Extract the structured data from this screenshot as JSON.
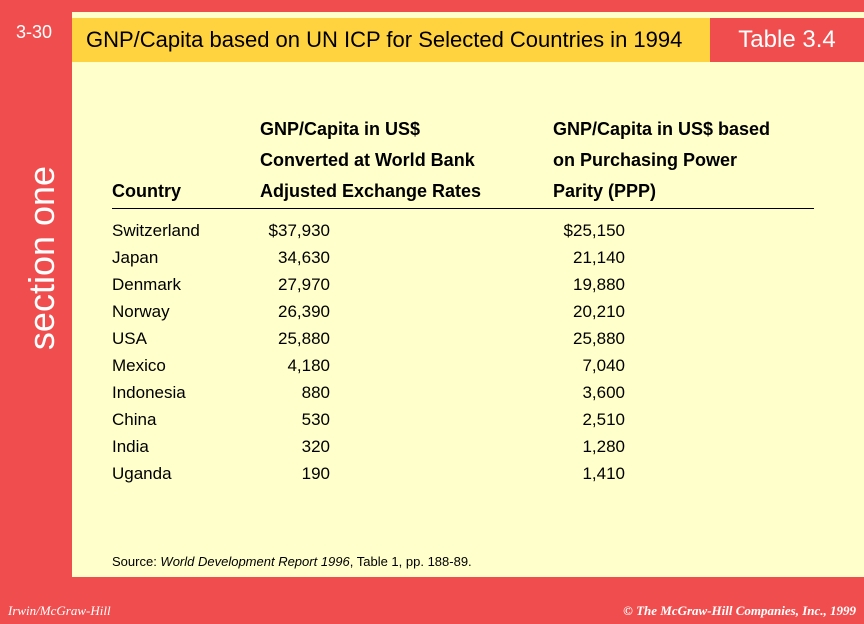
{
  "slide_number": "3-30",
  "section_label": "section one",
  "title": "GNP/Capita based on UN ICP for Selected Countries in 1994",
  "table_label": "Table 3.4",
  "headers": {
    "country": "Country",
    "col2": [
      "GNP/Capita in US$",
      "Converted at World Bank",
      "Adjusted Exchange Rates"
    ],
    "col3": [
      "GNP/Capita in US$ based",
      "on Purchasing Power",
      "Parity (PPP)"
    ]
  },
  "rows": [
    {
      "country": "Switzerland",
      "exchange": "$37,930",
      "ppp": "$25,150"
    },
    {
      "country": "Japan",
      "exchange": "34,630",
      "ppp": "21,140"
    },
    {
      "country": "Denmark",
      "exchange": "27,970",
      "ppp": "19,880"
    },
    {
      "country": "Norway",
      "exchange": "26,390",
      "ppp": "20,210"
    },
    {
      "country": "USA",
      "exchange": "25,880",
      "ppp": "25,880"
    },
    {
      "country": "Mexico",
      "exchange": "4,180",
      "ppp": "7,040"
    },
    {
      "country": "Indonesia",
      "exchange": "880",
      "ppp": "3,600"
    },
    {
      "country": "China",
      "exchange": "530",
      "ppp": "2,510"
    },
    {
      "country": "India",
      "exchange": "320",
      "ppp": "1,280"
    },
    {
      "country": "Uganda",
      "exchange": "190",
      "ppp": "1,410"
    }
  ],
  "source": {
    "prefix": "Source: ",
    "publication": "World Development Report 1996",
    "suffix": ", Table 1, pp. 188-89."
  },
  "footer": {
    "left": "Irwin/McGraw-Hill",
    "right": "© The McGraw-Hill Companies, Inc., 1999"
  },
  "colors": {
    "accent_red": "#f04e4e",
    "title_yellow": "#ffd23f",
    "panel_cream": "#ffffcc"
  }
}
